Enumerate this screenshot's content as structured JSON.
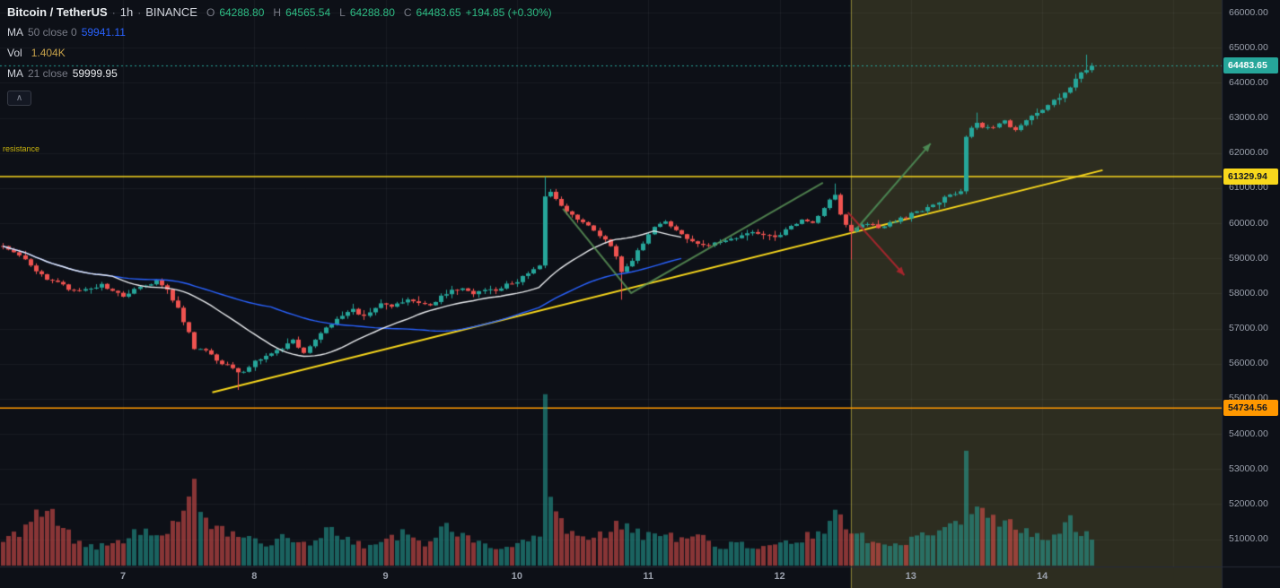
{
  "header": {
    "symbol": "Bitcoin / TetherUS",
    "separator": "·",
    "interval": "1h",
    "exchange": "BINANCE",
    "ohlc": {
      "o_label": "O",
      "o": "64288.80",
      "h_label": "H",
      "h": "64565.54",
      "l_label": "L",
      "l": "64288.80",
      "c_label": "C",
      "c": "64483.65",
      "change": "+194.85 (+0.30%)"
    }
  },
  "indicators": [
    {
      "name": "MA",
      "params": "50 close 0",
      "value": "59941.11",
      "value_color": "#2962ff"
    },
    {
      "name": "Vol",
      "params": "",
      "value": "1.404K",
      "value_color": "#c7a24a"
    },
    {
      "name": "MA",
      "params": "21 close",
      "value": "59999.95",
      "value_color": "#eaecef"
    }
  ],
  "icons": {
    "collapse": "∧"
  },
  "annotations": {
    "resistance_label": "resistance"
  },
  "chart_data": {
    "type": "candlestick",
    "title": "Bitcoin / TetherUS · 1h · BINANCE",
    "timeframe": "1h",
    "last_candle": {
      "open": 64288.8,
      "high": 64565.54,
      "low": 64288.8,
      "close": 64483.65,
      "change": "+194.85",
      "change_pct": "+0.30%",
      "volume_k": 1.404
    },
    "y_axis": {
      "ticks": [
        66000,
        65000,
        64000,
        63000,
        62000,
        61000,
        60000,
        59000,
        58000,
        57000,
        56000,
        55000,
        54000,
        53000,
        52000,
        51000
      ]
    },
    "x_axis": {
      "start_day": 6.085,
      "bars": 200,
      "bar_interval_days": 0.0416667,
      "ticks": [
        {
          "day": 7,
          "label": "7"
        },
        {
          "day": 8,
          "label": "8"
        },
        {
          "day": 9,
          "label": "9"
        },
        {
          "day": 10,
          "label": "10"
        },
        {
          "day": 11,
          "label": "11"
        },
        {
          "day": 12,
          "label": "12"
        },
        {
          "day": 13,
          "label": "13"
        },
        {
          "day": 14,
          "label": "14"
        }
      ],
      "grid_days": [
        7,
        8,
        9,
        10,
        11,
        12,
        13,
        14,
        15
      ]
    },
    "price_points": [
      [
        6.08,
        59350
      ],
      [
        6.17,
        59150
      ],
      [
        6.29,
        58850
      ],
      [
        6.42,
        58350
      ],
      [
        6.5,
        58300
      ],
      [
        6.58,
        58150
      ],
      [
        6.67,
        58050
      ],
      [
        6.75,
        58150
      ],
      [
        6.83,
        58250
      ],
      [
        6.92,
        58050
      ],
      [
        7.0,
        57900
      ],
      [
        7.08,
        58100
      ],
      [
        7.17,
        58250
      ],
      [
        7.25,
        58350
      ],
      [
        7.33,
        58150
      ],
      [
        7.42,
        57550
      ],
      [
        7.5,
        56900
      ],
      [
        7.54,
        56450
      ],
      [
        7.63,
        56350
      ],
      [
        7.71,
        56100
      ],
      [
        7.79,
        55950
      ],
      [
        7.88,
        55700
      ],
      [
        7.92,
        55800
      ],
      [
        8.0,
        56050
      ],
      [
        8.08,
        56200
      ],
      [
        8.17,
        56350
      ],
      [
        8.29,
        56650
      ],
      [
        8.38,
        56300
      ],
      [
        8.46,
        56650
      ],
      [
        8.54,
        57000
      ],
      [
        8.63,
        57300
      ],
      [
        8.71,
        57500
      ],
      [
        8.75,
        57550
      ],
      [
        8.83,
        57350
      ],
      [
        8.96,
        57700
      ],
      [
        9.04,
        57600
      ],
      [
        9.17,
        57800
      ],
      [
        9.25,
        57750
      ],
      [
        9.33,
        57650
      ],
      [
        9.42,
        57900
      ],
      [
        9.5,
        58100
      ],
      [
        9.58,
        58150
      ],
      [
        9.67,
        57950
      ],
      [
        9.75,
        58100
      ],
      [
        9.83,
        58050
      ],
      [
        9.92,
        58250
      ],
      [
        10.0,
        58350
      ],
      [
        10.08,
        58550
      ],
      [
        10.17,
        58800
      ],
      [
        10.21,
        60800
      ],
      [
        10.25,
        60950
      ],
      [
        10.33,
        60500
      ],
      [
        10.42,
        60250
      ],
      [
        10.5,
        60000
      ],
      [
        10.58,
        59850
      ],
      [
        10.67,
        59500
      ],
      [
        10.75,
        59100
      ],
      [
        10.79,
        58550
      ],
      [
        10.88,
        58950
      ],
      [
        10.96,
        59450
      ],
      [
        11.04,
        59850
      ],
      [
        11.13,
        60100
      ],
      [
        11.21,
        59800
      ],
      [
        11.33,
        59500
      ],
      [
        11.46,
        59350
      ],
      [
        11.58,
        59550
      ],
      [
        11.71,
        59650
      ],
      [
        11.83,
        59750
      ],
      [
        11.96,
        59600
      ],
      [
        12.08,
        59900
      ],
      [
        12.17,
        60100
      ],
      [
        12.25,
        60000
      ],
      [
        12.33,
        60450
      ],
      [
        12.42,
        60850
      ],
      [
        12.46,
        60200
      ],
      [
        12.54,
        59800
      ],
      [
        12.63,
        60000
      ],
      [
        12.75,
        59900
      ],
      [
        12.88,
        60050
      ],
      [
        13.0,
        60250
      ],
      [
        13.13,
        60450
      ],
      [
        13.25,
        60700
      ],
      [
        13.38,
        60950
      ],
      [
        13.42,
        62500
      ],
      [
        13.5,
        62850
      ],
      [
        13.58,
        62700
      ],
      [
        13.71,
        62900
      ],
      [
        13.79,
        62650
      ],
      [
        13.92,
        63050
      ],
      [
        14.04,
        63350
      ],
      [
        14.17,
        63700
      ],
      [
        14.25,
        64100
      ],
      [
        14.33,
        64400
      ],
      [
        14.4,
        64483.65
      ]
    ],
    "wick_events": [
      {
        "day": 7.88,
        "low": 55250
      },
      {
        "day": 10.21,
        "high": 61320
      },
      {
        "day": 10.79,
        "low": 57820
      },
      {
        "day": 12.42,
        "high": 61130
      },
      {
        "day": 12.54,
        "low": 58970
      },
      {
        "day": 13.5,
        "high": 63150
      },
      {
        "day": 14.33,
        "high": 64800
      }
    ],
    "volume_points_k": [
      [
        6.1,
        1.2
      ],
      [
        6.3,
        2.4
      ],
      [
        6.42,
        3.4
      ],
      [
        6.6,
        1.5
      ],
      [
        6.8,
        1.0
      ],
      [
        7.0,
        1.4
      ],
      [
        7.17,
        2.2
      ],
      [
        7.3,
        1.5
      ],
      [
        7.46,
        2.8
      ],
      [
        7.54,
        5.6
      ],
      [
        7.58,
        2.6
      ],
      [
        7.7,
        2.3
      ],
      [
        7.8,
        1.8
      ],
      [
        7.95,
        1.5
      ],
      [
        8.1,
        1.2
      ],
      [
        8.25,
        1.7
      ],
      [
        8.4,
        1.1
      ],
      [
        8.55,
        1.9
      ],
      [
        8.7,
        1.4
      ],
      [
        8.85,
        1.1
      ],
      [
        9.0,
        1.3
      ],
      [
        9.15,
        1.8
      ],
      [
        9.3,
        1.2
      ],
      [
        9.46,
        2.2
      ],
      [
        9.6,
        1.5
      ],
      [
        9.75,
        1.1
      ],
      [
        9.9,
        1.0
      ],
      [
        10.05,
        1.3
      ],
      [
        10.17,
        1.6
      ],
      [
        10.21,
        8.0
      ],
      [
        10.25,
        3.4
      ],
      [
        10.33,
        2.2
      ],
      [
        10.45,
        1.8
      ],
      [
        10.6,
        1.6
      ],
      [
        10.7,
        1.8
      ],
      [
        10.8,
        2.4
      ],
      [
        10.95,
        1.6
      ],
      [
        11.1,
        1.8
      ],
      [
        11.25,
        1.3
      ],
      [
        11.4,
        1.5
      ],
      [
        11.55,
        1.0
      ],
      [
        11.7,
        1.2
      ],
      [
        11.85,
        0.9
      ],
      [
        12.0,
        1.1
      ],
      [
        12.15,
        1.4
      ],
      [
        12.3,
        1.8
      ],
      [
        12.42,
        2.7
      ],
      [
        12.5,
        2.2
      ],
      [
        12.65,
        1.4
      ],
      [
        12.8,
        1.1
      ],
      [
        12.95,
        1.3
      ],
      [
        13.1,
        1.7
      ],
      [
        13.25,
        2.0
      ],
      [
        13.38,
        2.3
      ],
      [
        13.42,
        7.6
      ],
      [
        13.46,
        3.2
      ],
      [
        13.55,
        2.8
      ],
      [
        13.65,
        2.4
      ],
      [
        13.75,
        2.2
      ],
      [
        13.9,
        1.8
      ],
      [
        14.05,
        1.5
      ],
      [
        14.2,
        2.4
      ],
      [
        14.3,
        1.9
      ],
      [
        14.4,
        1.404
      ]
    ],
    "moving_averages": [
      {
        "period": 50,
        "source": "close",
        "offset": 0,
        "color": "#2962ff",
        "last_value": "59941.11",
        "draw_until_day": 11.27
      },
      {
        "period": 21,
        "source": "close",
        "color": "#eaecef",
        "last_value": "59999.95",
        "draw_until_day": 11.27
      }
    ],
    "horizontal_lines": [
      {
        "price": 61329.94,
        "color": "#f8d71c",
        "label": "61329.94"
      },
      {
        "price": 54734.56,
        "color": "#ff9800",
        "label": "54734.56"
      }
    ],
    "trendline": {
      "from": [
        7.68,
        55180
      ],
      "to": [
        14.46,
        61510
      ],
      "color": "#f8d71c"
    },
    "zigzag": {
      "points": [
        [
          10.35,
          60410
        ],
        [
          10.87,
          58010
        ],
        [
          12.33,
          61150
        ]
      ],
      "color": "rgba(94,152,90,0.8)"
    },
    "arrows": [
      {
        "direction": "up",
        "from": [
          12.57,
          59770
        ],
        "to": [
          13.15,
          62270
        ],
        "color": "rgba(78,141,87,0.9)"
      },
      {
        "direction": "down",
        "from": [
          12.52,
          60310
        ],
        "to": [
          12.95,
          58520
        ],
        "color": "rgba(168,38,45,0.95)"
      }
    ],
    "highlight_region": {
      "from_day": 12.54,
      "to_day": 15.4,
      "fill": "rgba(227,218,85,0.15)",
      "edge_color": "rgba(240,225,80,0.45)"
    },
    "current_price_line": {
      "price": 64483.65,
      "color": "#26a69a"
    },
    "price_tags": [
      {
        "name": "current-price",
        "label": "64483.65",
        "price": 64483.65,
        "bg": "#26a69a",
        "text_color": "#ffffff"
      },
      {
        "name": "yellow-level",
        "label": "61329.94",
        "price": 61329.94,
        "bg": "#f8d71c",
        "text_color": "#131722"
      },
      {
        "name": "orange-level",
        "label": "54734.56",
        "price": 54734.56,
        "bg": "#ff9800",
        "text_color": "#131722"
      }
    ],
    "colors": {
      "bg": "#0d1017",
      "grid": "rgba(197,203,224,0.06)",
      "up": "#26a69a",
      "down": "#ef5350",
      "vol_up": "rgba(38,166,154,0.55)",
      "vol_down": "rgba(239,83,80,0.55)",
      "axis_text": "#9aa0ac",
      "separator": "#262b38",
      "ohlc_up": "#2ebd85"
    }
  }
}
